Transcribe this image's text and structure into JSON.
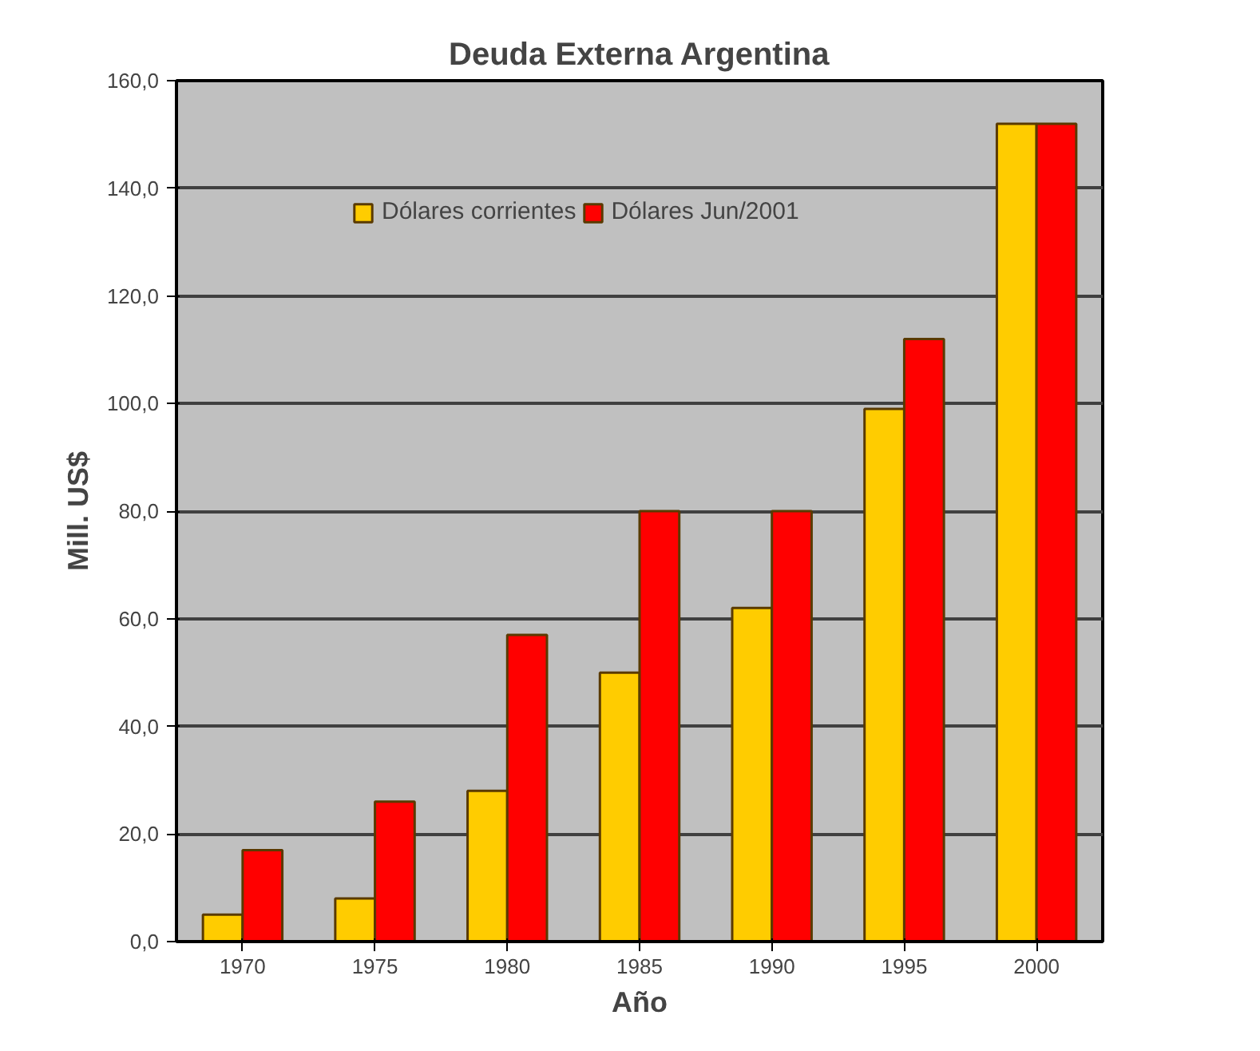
{
  "chart_data": {
    "type": "bar",
    "title": "Deuda Externa Argentina",
    "xlabel": "Año",
    "ylabel": "Mill. US$",
    "categories": [
      "1970",
      "1975",
      "1980",
      "1985",
      "1990",
      "1995",
      "2000"
    ],
    "series": [
      {
        "name": "Dólares corrientes",
        "color": "#ffcc00",
        "values": [
          5,
          8,
          28,
          50,
          62,
          99,
          152
        ]
      },
      {
        "name": "Dólares Jun/2001",
        "color": "#ff0000",
        "values": [
          17,
          26,
          57,
          80,
          80,
          112,
          152
        ]
      }
    ],
    "ylim": [
      0,
      160
    ],
    "yticks": [
      {
        "value": 0,
        "label": "0,0"
      },
      {
        "value": 20,
        "label": "20,0"
      },
      {
        "value": 40,
        "label": "40,0"
      },
      {
        "value": 60,
        "label": "60,0"
      },
      {
        "value": 80,
        "label": "80,0"
      },
      {
        "value": 100,
        "label": "100,0"
      },
      {
        "value": 120,
        "label": "120,0"
      },
      {
        "value": 140,
        "label": "140,0"
      },
      {
        "value": 160,
        "label": "160,0"
      }
    ],
    "grid": "y",
    "legend": "top"
  }
}
